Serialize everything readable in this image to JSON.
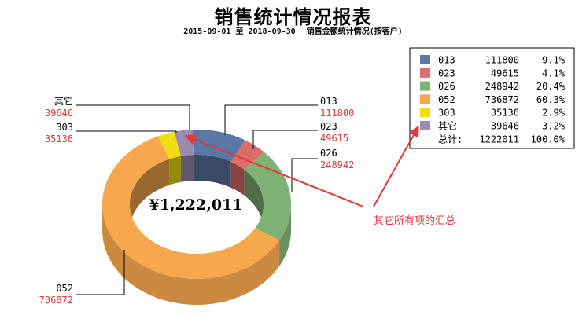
{
  "title": "销售统计情况报表",
  "subtitle": {
    "date_range": "2015-09-01 至 2018-09-30",
    "description": "销售金额统计情况(按客户)"
  },
  "center_label": "¥1,222,011",
  "annotation": "其它所有项的汇总",
  "chart_data": {
    "type": "pie",
    "style": "3d-donut",
    "slices": [
      {
        "label": "013",
        "value": 111800,
        "percent": "9.1%",
        "color": "#5a78a5"
      },
      {
        "label": "023",
        "value": 49615,
        "percent": "4.1%",
        "color": "#dd6d6a"
      },
      {
        "label": "026",
        "value": 248942,
        "percent": "20.4%",
        "color": "#7fb174"
      },
      {
        "label": "052",
        "value": 736872,
        "percent": "60.3%",
        "color": "#f7a84d"
      },
      {
        "label": "303",
        "value": 35136,
        "percent": "2.9%",
        "color": "#f0dd0f"
      },
      {
        "label": "其它",
        "value": 39646,
        "percent": "3.2%",
        "color": "#9b8bb2"
      }
    ],
    "legend": {
      "position": "top-right",
      "total_label": "总计:",
      "total_value": "1222011",
      "total_percent": "100.0%"
    }
  }
}
